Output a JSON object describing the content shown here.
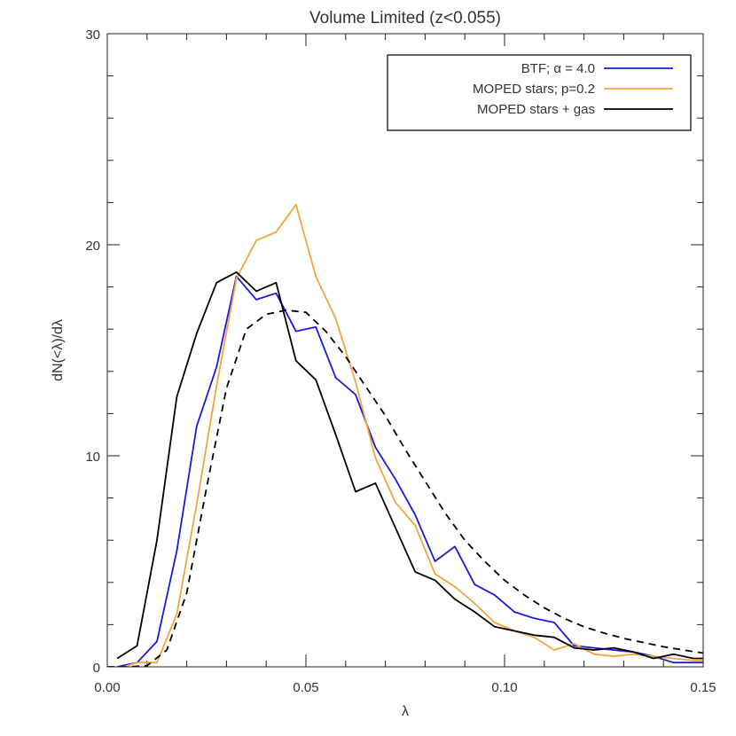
{
  "chart_data": {
    "type": "line",
    "title": "Volume Limited (z<0.055)",
    "xlabel": "λ",
    "ylabel": "dN(<λ)/dλ",
    "xlim": [
      0,
      0.15
    ],
    "ylim": [
      0,
      30
    ],
    "grid": false,
    "legend_position": "top-right",
    "x_ticks": [
      {
        "value": 0,
        "label": "0.00"
      },
      {
        "value": 0.05,
        "label": "0.05"
      },
      {
        "value": 0.1,
        "label": "0.10"
      },
      {
        "value": 0.15,
        "label": "0.15"
      }
    ],
    "y_ticks": [
      {
        "value": 0,
        "label": "0"
      },
      {
        "value": 10,
        "label": "10"
      },
      {
        "value": 20,
        "label": "20"
      },
      {
        "value": 30,
        "label": "30"
      }
    ],
    "series": [
      {
        "name": "BTF; α = 4.0",
        "color": "#1a1adb",
        "dash": "solid",
        "x": [
          0.0025,
          0.0075,
          0.0125,
          0.0175,
          0.0225,
          0.0275,
          0.0325,
          0.0375,
          0.0425,
          0.0475,
          0.0525,
          0.0575,
          0.0625,
          0.0675,
          0.0725,
          0.0775,
          0.0825,
          0.0875,
          0.0925,
          0.0975,
          0.1025,
          0.1075,
          0.1125,
          0.1175,
          0.1225,
          0.1275,
          0.1325,
          0.1375,
          0.1425,
          0.1475,
          0.15
        ],
        "y": [
          0.0,
          0.2,
          1.2,
          5.5,
          11.4,
          14.2,
          18.5,
          17.4,
          17.7,
          15.9,
          16.1,
          13.7,
          12.9,
          10.4,
          8.9,
          7.2,
          5.0,
          5.7,
          3.9,
          3.4,
          2.6,
          2.3,
          2.1,
          1.0,
          0.9,
          0.8,
          0.7,
          0.5,
          0.2,
          0.2,
          0.2
        ]
      },
      {
        "name": "MOPED stars; p=0.2",
        "color": "#f5a43c",
        "dash": "solid",
        "x": [
          0.0025,
          0.0075,
          0.0125,
          0.0175,
          0.0225,
          0.0275,
          0.0325,
          0.0375,
          0.0425,
          0.0475,
          0.0525,
          0.0575,
          0.0625,
          0.0675,
          0.0725,
          0.0775,
          0.0825,
          0.0875,
          0.0925,
          0.0975,
          0.1025,
          0.1075,
          0.1125,
          0.1175,
          0.1225,
          0.1275,
          0.1325,
          0.1375,
          0.1425,
          0.1475,
          0.15
        ],
        "y": [
          -0.1,
          0.2,
          0.2,
          2.5,
          7.7,
          13.3,
          18.4,
          20.2,
          20.6,
          21.9,
          18.5,
          16.5,
          13.5,
          9.9,
          7.8,
          6.7,
          4.4,
          3.8,
          3.0,
          2.1,
          1.7,
          1.4,
          0.8,
          1.1,
          0.6,
          0.5,
          0.6,
          0.5,
          0.4,
          0.3,
          0.3
        ]
      },
      {
        "name": "MOPED stars + gas",
        "color": "#000000",
        "dash": "solid",
        "x": [
          0.0025,
          0.0075,
          0.0125,
          0.0175,
          0.0225,
          0.0275,
          0.0325,
          0.0375,
          0.0425,
          0.0475,
          0.0525,
          0.0575,
          0.0625,
          0.0675,
          0.0725,
          0.0775,
          0.0825,
          0.0875,
          0.0925,
          0.0975,
          0.1025,
          0.1075,
          0.1125,
          0.1175,
          0.1225,
          0.1275,
          0.1325,
          0.1375,
          0.1425,
          0.1475,
          0.15
        ],
        "y": [
          0.4,
          1.0,
          6.0,
          12.8,
          15.8,
          18.2,
          18.7,
          17.8,
          18.2,
          14.5,
          13.6,
          11.0,
          8.3,
          8.7,
          6.6,
          4.5,
          4.1,
          3.2,
          2.6,
          1.9,
          1.7,
          1.5,
          1.4,
          0.9,
          0.8,
          0.9,
          0.7,
          0.4,
          0.6,
          0.4,
          0.4
        ]
      },
      {
        "name": "",
        "color": "#000000",
        "dash": "dashed",
        "x": [
          0.0,
          0.005,
          0.01,
          0.015,
          0.02,
          0.025,
          0.03,
          0.035,
          0.04,
          0.045,
          0.05,
          0.055,
          0.06,
          0.065,
          0.07,
          0.075,
          0.08,
          0.085,
          0.09,
          0.095,
          0.1,
          0.105,
          0.11,
          0.115,
          0.12,
          0.125,
          0.13,
          0.135,
          0.14,
          0.145,
          0.15
        ],
        "y": [
          0.0,
          0.0,
          0.05,
          0.8,
          3.5,
          8.5,
          13.2,
          16.0,
          16.7,
          16.9,
          16.8,
          15.9,
          14.7,
          13.3,
          11.9,
          10.3,
          8.8,
          7.3,
          6.0,
          5.0,
          4.1,
          3.4,
          2.8,
          2.3,
          1.9,
          1.6,
          1.35,
          1.15,
          0.95,
          0.8,
          0.65
        ]
      }
    ]
  }
}
